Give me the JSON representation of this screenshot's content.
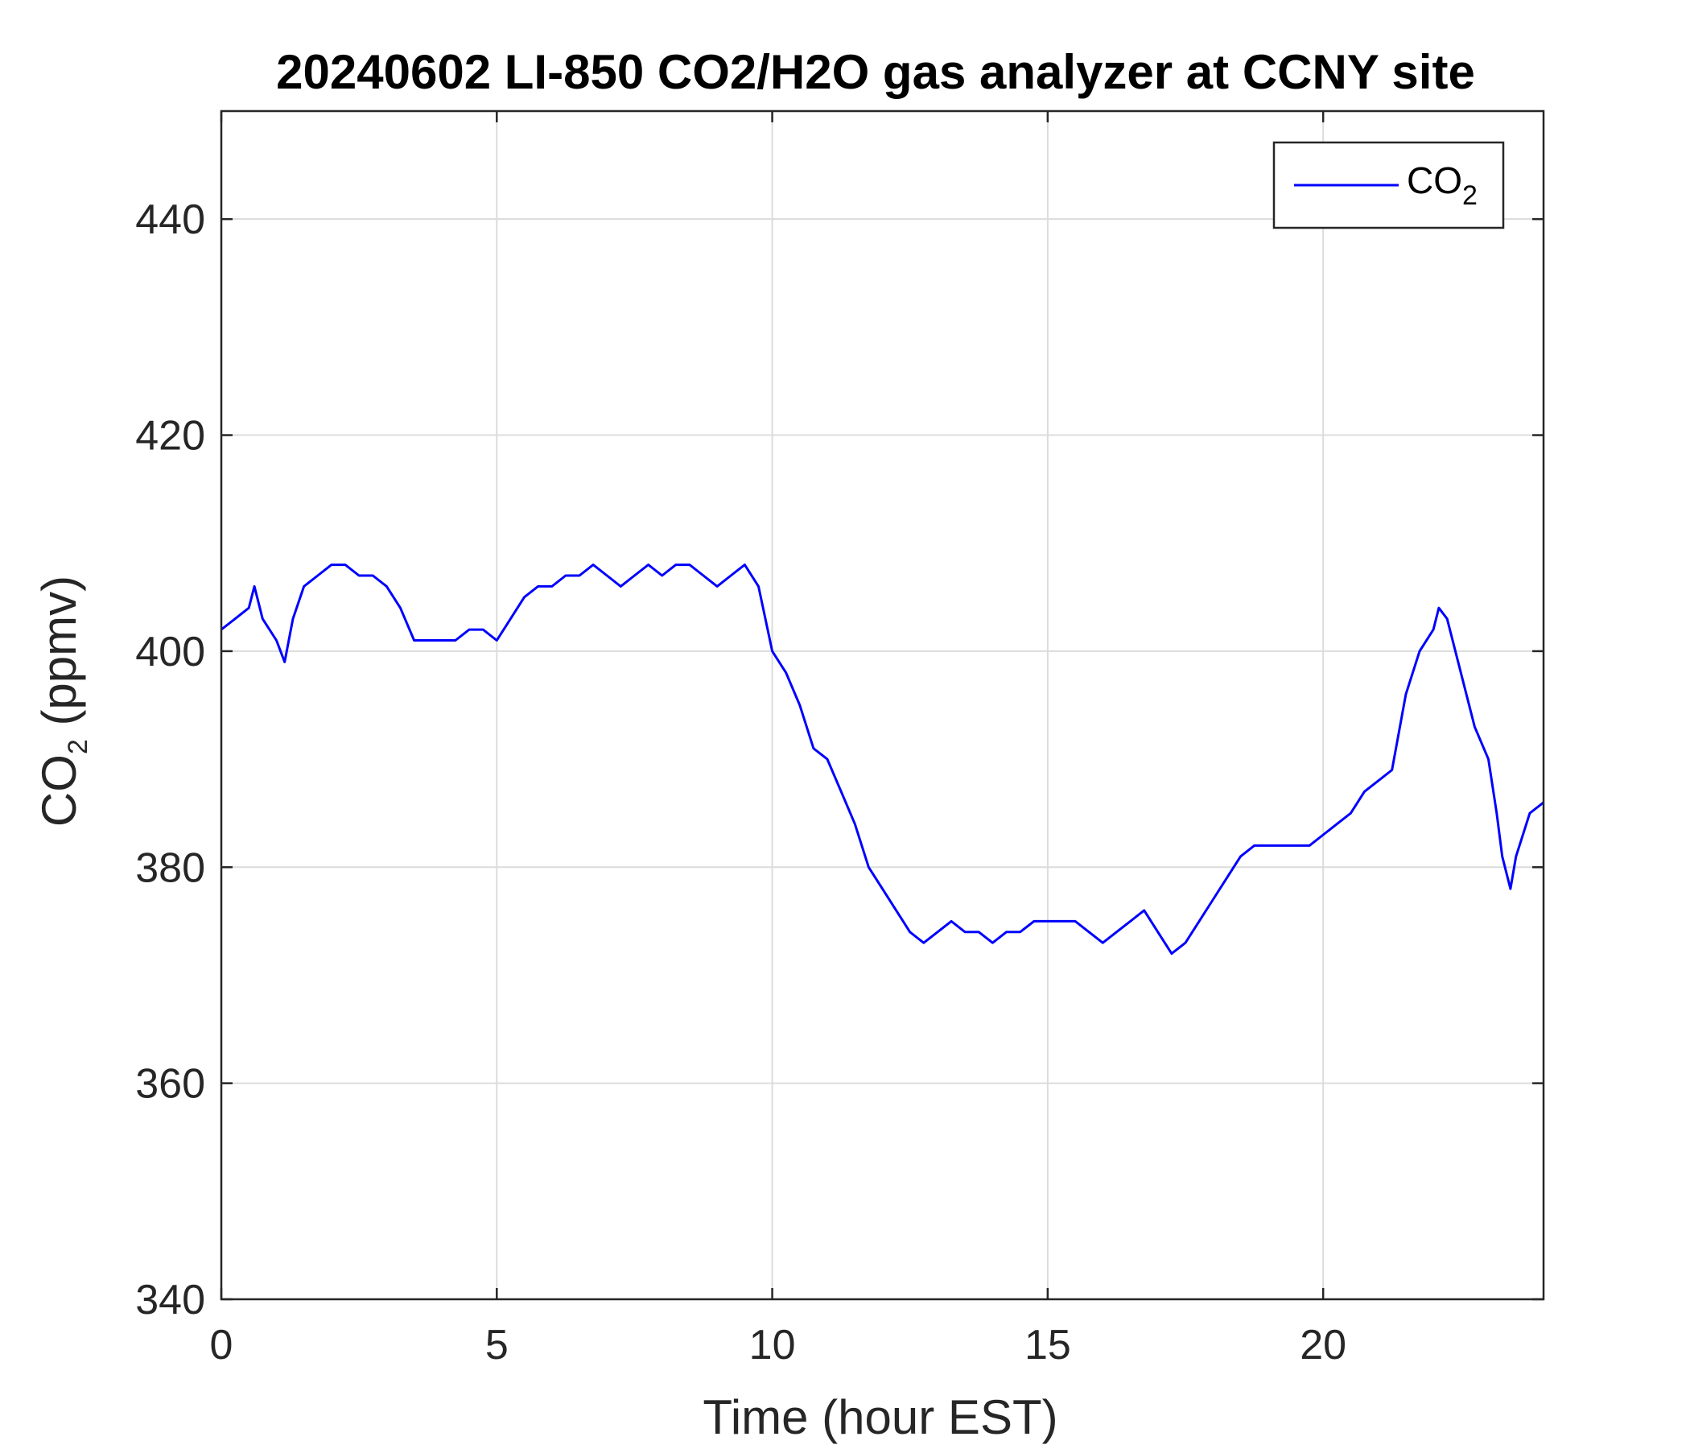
{
  "chart_data": {
    "type": "line",
    "title": "20240602 LI-850 CO2/H2O gas analyzer at CCNY site",
    "xlabel": "Time (hour EST)",
    "ylabel": {
      "main": "CO",
      "sub": "2",
      "suffix": " (ppmv)"
    },
    "xlim": [
      0,
      24
    ],
    "ylim": [
      340,
      450
    ],
    "xticks": [
      0,
      5,
      10,
      15,
      20
    ],
    "xtick_labels": [
      "0",
      "5",
      "10",
      "15",
      "20"
    ],
    "yticks": [
      340,
      360,
      380,
      400,
      420,
      440
    ],
    "ytick_labels": [
      "340",
      "360",
      "380",
      "400",
      "420",
      "440"
    ],
    "grid": true,
    "legend_position": "top-right",
    "series": [
      {
        "name": {
          "main": "CO",
          "sub": "2"
        },
        "color": "#0000ff",
        "x": [
          0.0,
          0.25,
          0.5,
          0.6,
          0.75,
          1.0,
          1.15,
          1.3,
          1.5,
          1.75,
          2.0,
          2.25,
          2.5,
          2.75,
          3.0,
          3.25,
          3.5,
          3.75,
          4.0,
          4.25,
          4.5,
          4.75,
          5.0,
          5.25,
          5.5,
          5.75,
          6.0,
          6.25,
          6.5,
          6.75,
          7.0,
          7.25,
          7.5,
          7.75,
          8.0,
          8.25,
          8.5,
          8.75,
          9.0,
          9.25,
          9.5,
          9.75,
          10.0,
          10.25,
          10.5,
          10.75,
          11.0,
          11.25,
          11.5,
          11.75,
          12.0,
          12.25,
          12.5,
          12.75,
          13.0,
          13.25,
          13.5,
          13.75,
          14.0,
          14.25,
          14.5,
          14.75,
          15.0,
          15.25,
          15.5,
          15.75,
          16.0,
          16.25,
          16.5,
          16.75,
          17.0,
          17.25,
          17.5,
          17.75,
          18.0,
          18.25,
          18.5,
          18.75,
          19.0,
          19.25,
          19.5,
          19.75,
          20.0,
          20.25,
          20.5,
          20.75,
          21.0,
          21.25,
          21.5,
          21.75,
          22.0,
          22.1,
          22.25,
          22.5,
          22.75,
          23.0,
          23.15,
          23.25,
          23.4,
          23.5,
          23.75,
          24.0
        ],
        "y": [
          402,
          403,
          404,
          406,
          403,
          401,
          399,
          403,
          406,
          407,
          408,
          408,
          407,
          407,
          406,
          404,
          401,
          401,
          401,
          401,
          402,
          402,
          401,
          403,
          405,
          406,
          406,
          407,
          407,
          408,
          407,
          406,
          407,
          408,
          407,
          408,
          408,
          407,
          406,
          407,
          408,
          406,
          400,
          398,
          395,
          391,
          390,
          387,
          384,
          380,
          378,
          376,
          374,
          373,
          374,
          375,
          374,
          374,
          373,
          374,
          374,
          375,
          375,
          375,
          375,
          374,
          373,
          374,
          375,
          376,
          374,
          372,
          373,
          375,
          377,
          379,
          381,
          382,
          382,
          382,
          382,
          382,
          383,
          384,
          385,
          387,
          388,
          389,
          396,
          400,
          402,
          404,
          403,
          398,
          393,
          390,
          385,
          381,
          378,
          381,
          385,
          386
        ]
      }
    ]
  }
}
